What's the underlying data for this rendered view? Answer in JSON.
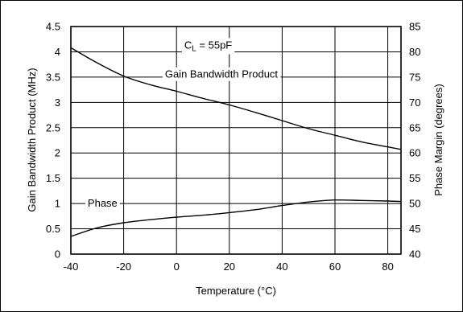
{
  "chart_data": {
    "type": "line",
    "xlabel": "Temperature (°C)",
    "ylabel": "Gain Bandwidth Product (MHz)",
    "y2label": "Phase Margin (degrees)",
    "xlim": [
      -40,
      85
    ],
    "ylim": [
      0,
      4.5
    ],
    "y2lim": [
      40,
      85
    ],
    "grid": true,
    "x_ticks": [
      "-40",
      "-20",
      "0",
      "20",
      "40",
      "60",
      "80"
    ],
    "y_ticks": [
      "0",
      "0.5",
      "1",
      "1.5",
      "2",
      "2.5",
      "3",
      "3.5",
      "4",
      "4.5"
    ],
    "y2_ticks": [
      "40",
      "45",
      "50",
      "55",
      "60",
      "65",
      "70",
      "75",
      "80",
      "85"
    ],
    "annotation": {
      "main": "C",
      "sub": "L",
      "rest": " = 55pF"
    },
    "series": [
      {
        "name": "Gain Bandwidth Product",
        "axis": "left",
        "x": [
          -40,
          -30,
          -20,
          -10,
          0,
          10,
          20,
          30,
          40,
          50,
          60,
          70,
          80,
          85
        ],
        "y": [
          4.08,
          3.78,
          3.52,
          3.35,
          3.22,
          3.08,
          2.95,
          2.8,
          2.64,
          2.48,
          2.35,
          2.22,
          2.12,
          2.07
        ]
      },
      {
        "name": "Phase",
        "axis": "right",
        "x": [
          -40,
          -30,
          -20,
          -10,
          0,
          10,
          20,
          30,
          40,
          50,
          60,
          70,
          80,
          85
        ],
        "y": [
          43.5,
          45.2,
          46.2,
          46.8,
          47.3,
          47.7,
          48.2,
          48.8,
          49.6,
          50.3,
          50.7,
          50.6,
          50.5,
          50.4
        ]
      }
    ]
  }
}
